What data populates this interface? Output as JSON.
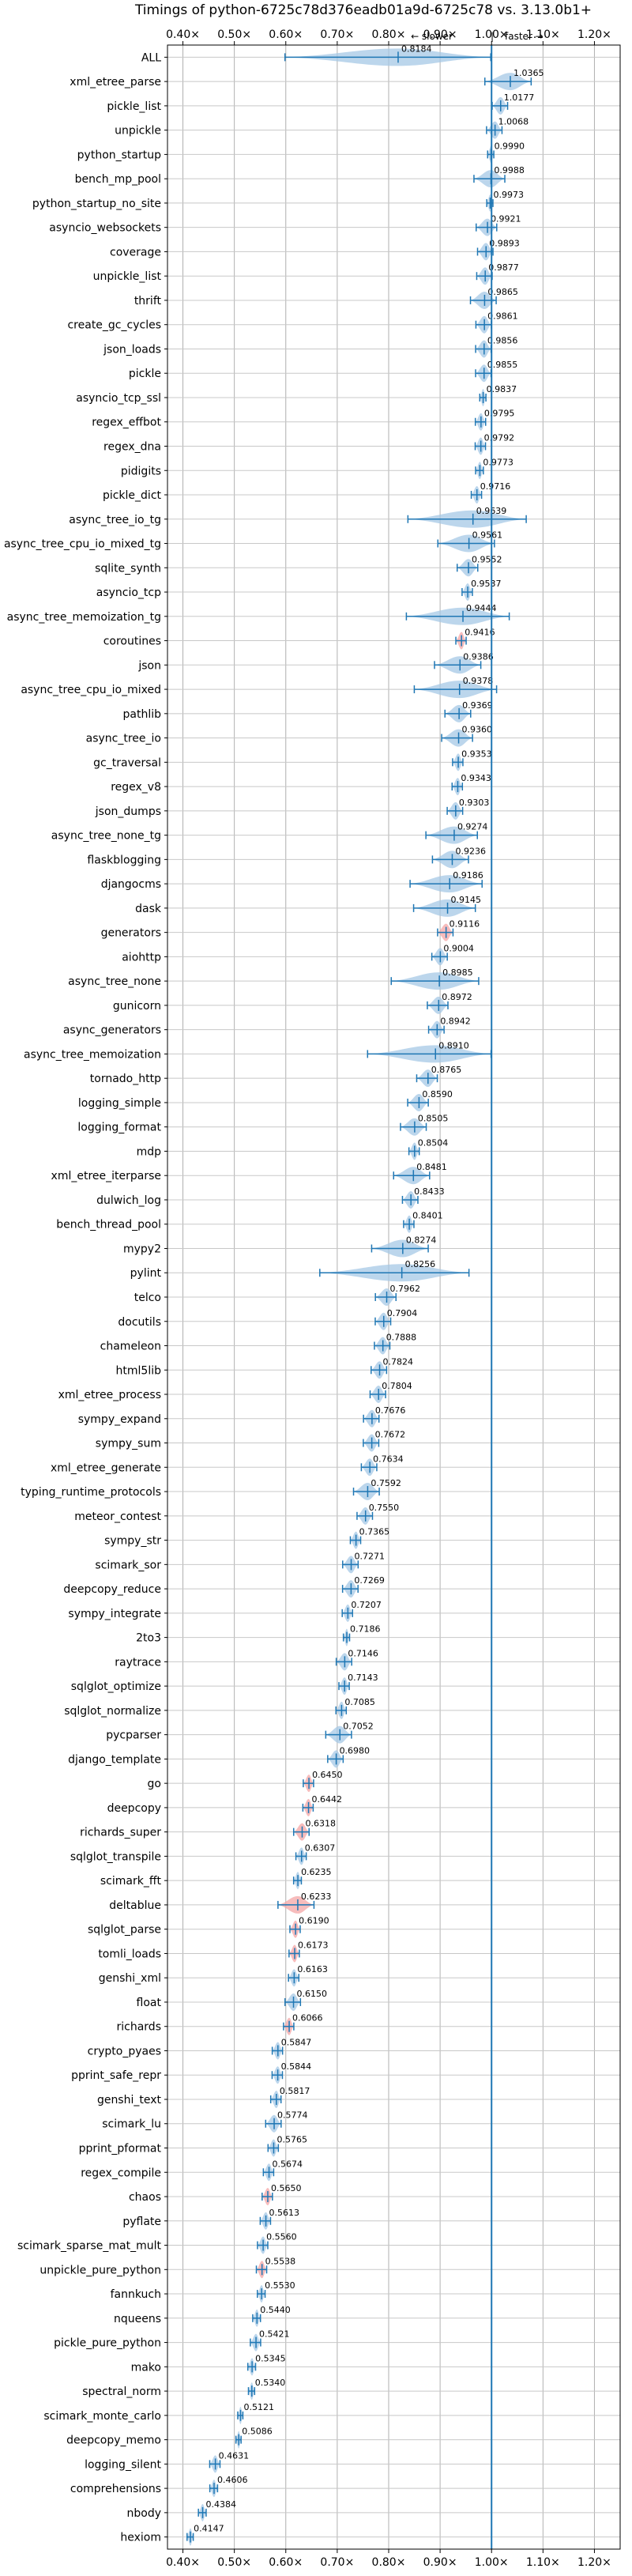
{
  "chart_data": {
    "type": "violin",
    "title": "Timings of python-6725c78d376eadb01a9d-6725c78 vs. 3.13.0b1+",
    "annotation_left": "← slower",
    "annotation_sep": "|",
    "annotation_right": "faster →",
    "x_ticks": [
      "0.40×",
      "0.50×",
      "0.60×",
      "0.70×",
      "0.80×",
      "0.90×",
      "1.00×",
      "1.10×",
      "1.20×"
    ],
    "x_tick_values": [
      0.4,
      0.5,
      0.6,
      0.7,
      0.8,
      0.9,
      1.0,
      1.1,
      1.2
    ],
    "xlim": [
      0.37,
      1.25
    ],
    "reference_line": 1.0,
    "grid": true,
    "colors": {
      "violin": "#a6c8e6",
      "line": "#1f77b4",
      "significant": "#f4a6a6"
    },
    "categories": [
      "ALL",
      "xml_etree_parse",
      "pickle_list",
      "unpickle",
      "python_startup",
      "bench_mp_pool",
      "python_startup_no_site",
      "asyncio_websockets",
      "coverage",
      "unpickle_list",
      "thrift",
      "create_gc_cycles",
      "json_loads",
      "pickle",
      "asyncio_tcp_ssl",
      "regex_effbot",
      "regex_dna",
      "pidigits",
      "pickle_dict",
      "async_tree_io_tg",
      "async_tree_cpu_io_mixed_tg",
      "sqlite_synth",
      "asyncio_tcp",
      "async_tree_memoization_tg",
      "coroutines",
      "json",
      "async_tree_cpu_io_mixed",
      "pathlib",
      "async_tree_io",
      "gc_traversal",
      "regex_v8",
      "json_dumps",
      "async_tree_none_tg",
      "flaskblogging",
      "djangocms",
      "dask",
      "generators",
      "aiohttp",
      "async_tree_none",
      "gunicorn",
      "async_generators",
      "async_tree_memoization",
      "tornado_http",
      "logging_simple",
      "logging_format",
      "mdp",
      "xml_etree_iterparse",
      "dulwich_log",
      "bench_thread_pool",
      "mypy2",
      "pylint",
      "telco",
      "docutils",
      "chameleon",
      "html5lib",
      "xml_etree_process",
      "sympy_expand",
      "sympy_sum",
      "xml_etree_generate",
      "typing_runtime_protocols",
      "meteor_contest",
      "sympy_str",
      "scimark_sor",
      "deepcopy_reduce",
      "sympy_integrate",
      "2to3",
      "raytrace",
      "sqlglot_optimize",
      "sqlglot_normalize",
      "pycparser",
      "django_template",
      "go",
      "deepcopy",
      "richards_super",
      "sqlglot_transpile",
      "scimark_fft",
      "deltablue",
      "sqlglot_parse",
      "tomli_loads",
      "genshi_xml",
      "float",
      "richards",
      "crypto_pyaes",
      "pprint_safe_repr",
      "genshi_text",
      "scimark_lu",
      "pprint_pformat",
      "regex_compile",
      "chaos",
      "pyflate",
      "scimark_sparse_mat_mult",
      "unpickle_pure_python",
      "fannkuch",
      "nqueens",
      "pickle_pure_python",
      "mako",
      "spectral_norm",
      "scimark_monte_carlo",
      "deepcopy_memo",
      "logging_silent",
      "comprehensions",
      "nbody",
      "hexiom"
    ],
    "values": [
      0.8184,
      1.0365,
      1.0177,
      1.0068,
      0.999,
      0.9988,
      0.9973,
      0.9921,
      0.9893,
      0.9877,
      0.9865,
      0.9861,
      0.9856,
      0.9855,
      0.9837,
      0.9795,
      0.9792,
      0.9773,
      0.9716,
      0.9639,
      0.9561,
      0.9552,
      0.9537,
      0.9444,
      0.9416,
      0.9386,
      0.9378,
      0.9369,
      0.936,
      0.9353,
      0.9343,
      0.9303,
      0.9274,
      0.9236,
      0.9186,
      0.9145,
      0.9116,
      0.9004,
      0.8985,
      0.8972,
      0.8942,
      0.891,
      0.8765,
      0.859,
      0.8505,
      0.8504,
      0.8481,
      0.8433,
      0.8401,
      0.8274,
      0.8256,
      0.7962,
      0.7904,
      0.7888,
      0.7824,
      0.7804,
      0.7676,
      0.7672,
      0.7634,
      0.7592,
      0.755,
      0.7365,
      0.7271,
      0.7269,
      0.7207,
      0.7186,
      0.7146,
      0.7143,
      0.7085,
      0.7052,
      0.698,
      0.645,
      0.6442,
      0.6318,
      0.6307,
      0.6235,
      0.6233,
      0.619,
      0.6173,
      0.6163,
      0.615,
      0.6066,
      0.5847,
      0.5844,
      0.5817,
      0.5774,
      0.5765,
      0.5674,
      0.565,
      0.5613,
      0.556,
      0.5538,
      0.553,
      0.544,
      0.5421,
      0.5345,
      0.534,
      0.5121,
      0.5086,
      0.4631,
      0.4606,
      0.4384,
      0.4147
    ],
    "value_labels": [
      "0.8184",
      "1.0365",
      "1.0177",
      "1.0068",
      "0.9990",
      "0.9988",
      "0.9973",
      "0.9921",
      "0.9893",
      "0.9877",
      "0.9865",
      "0.9861",
      "0.9856",
      "0.9855",
      "0.9837",
      "0.9795",
      "0.9792",
      "0.9773",
      "0.9716",
      "0.9639",
      "0.9561",
      "0.9552",
      "0.9537",
      "0.9444",
      "0.9416",
      "0.9386",
      "0.9378",
      "0.9369",
      "0.9360",
      "0.9353",
      "0.9343",
      "0.9303",
      "0.9274",
      "0.9236",
      "0.9186",
      "0.9145",
      "0.9116",
      "0.9004",
      "0.8985",
      "0.8972",
      "0.8942",
      "0.8910",
      "0.8765",
      "0.8590",
      "0.8505",
      "0.8504",
      "0.8481",
      "0.8433",
      "0.8401",
      "0.8274",
      "0.8256",
      "0.7962",
      "0.7904",
      "0.7888",
      "0.7824",
      "0.7804",
      "0.7676",
      "0.7672",
      "0.7634",
      "0.7592",
      "0.7550",
      "0.7365",
      "0.7271",
      "0.7269",
      "0.7207",
      "0.7186",
      "0.7146",
      "0.7143",
      "0.7085",
      "0.7052",
      "0.6980",
      "0.6450",
      "0.6442",
      "0.6318",
      "0.6307",
      "0.6235",
      "0.6233",
      "0.6190",
      "0.6173",
      "0.6163",
      "0.6150",
      "0.6066",
      "0.5847",
      "0.5844",
      "0.5817",
      "0.5774",
      "0.5765",
      "0.5674",
      "0.5650",
      "0.5613",
      "0.5560",
      "0.5538",
      "0.5530",
      "0.5440",
      "0.5421",
      "0.5345",
      "0.5340",
      "0.5121",
      "0.5086",
      "0.4631",
      "0.4606",
      "0.4384",
      "0.4147"
    ],
    "spread": [
      0.4,
      0.09,
      0.03,
      0.03,
      0.012,
      0.06,
      0.012,
      0.04,
      0.03,
      0.03,
      0.05,
      0.03,
      0.03,
      0.03,
      0.012,
      0.02,
      0.02,
      0.015,
      0.02,
      0.23,
      0.11,
      0.04,
      0.02,
      0.2,
      0.02,
      0.09,
      0.16,
      0.05,
      0.06,
      0.02,
      0.02,
      0.03,
      0.1,
      0.07,
      0.14,
      0.12,
      0.03,
      0.03,
      0.17,
      0.04,
      0.03,
      0.24,
      0.04,
      0.04,
      0.05,
      0.02,
      0.07,
      0.03,
      0.02,
      0.11,
      0.29,
      0.04,
      0.03,
      0.03,
      0.03,
      0.03,
      0.03,
      0.03,
      0.03,
      0.05,
      0.03,
      0.02,
      0.03,
      0.03,
      0.02,
      0.012,
      0.03,
      0.02,
      0.02,
      0.05,
      0.03,
      0.02,
      0.02,
      0.03,
      0.02,
      0.015,
      0.07,
      0.02,
      0.02,
      0.02,
      0.03,
      0.02,
      0.02,
      0.02,
      0.02,
      0.03,
      0.02,
      0.02,
      0.02,
      0.02,
      0.02,
      0.02,
      0.015,
      0.015,
      0.02,
      0.015,
      0.012,
      0.01,
      0.01,
      0.02,
      0.015,
      0.015,
      0.012
    ],
    "significant": [
      false,
      false,
      false,
      false,
      false,
      false,
      false,
      false,
      false,
      false,
      false,
      false,
      false,
      false,
      false,
      false,
      false,
      false,
      false,
      false,
      false,
      false,
      false,
      false,
      true,
      false,
      false,
      false,
      false,
      false,
      false,
      false,
      false,
      false,
      false,
      false,
      true,
      false,
      false,
      false,
      false,
      false,
      false,
      false,
      false,
      false,
      false,
      false,
      false,
      false,
      false,
      false,
      false,
      false,
      false,
      false,
      false,
      false,
      false,
      false,
      false,
      false,
      false,
      false,
      false,
      false,
      false,
      false,
      false,
      false,
      false,
      true,
      true,
      true,
      false,
      false,
      true,
      true,
      true,
      false,
      false,
      true,
      false,
      false,
      false,
      false,
      false,
      false,
      true,
      false,
      false,
      true,
      false,
      false,
      false,
      false,
      false,
      false,
      false,
      false,
      false,
      false,
      false
    ]
  }
}
